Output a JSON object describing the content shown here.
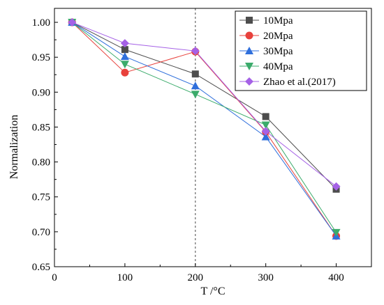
{
  "chart_data": {
    "type": "line",
    "title": "",
    "xlabel": "T /°C",
    "ylabel": "Normalization",
    "xlim": [
      0,
      450
    ],
    "ylim": [
      0.65,
      1.02
    ],
    "xticks": [
      0,
      100,
      200,
      300,
      400
    ],
    "xtick_labels": [
      "0",
      "100",
      "200",
      "300",
      "400"
    ],
    "yticks": [
      0.65,
      0.7,
      0.75,
      0.8,
      0.85,
      0.9,
      0.95,
      1.0
    ],
    "ytick_labels": [
      "0.65",
      "0.70",
      "0.75",
      "0.80",
      "0.85",
      "0.90",
      "0.95",
      "1.00"
    ],
    "grid": false,
    "legend_position": "top-right",
    "reference_line": {
      "x": 200,
      "style": "dashed"
    },
    "x": [
      25,
      100,
      200,
      300,
      400
    ],
    "series": [
      {
        "name": "10Mpa",
        "marker": "square",
        "color": "#4d4d4d",
        "values": [
          1.0,
          0.961,
          0.926,
          0.865,
          0.761
        ]
      },
      {
        "name": "20Mpa",
        "marker": "circle",
        "color": "#e8413c",
        "values": [
          1.0,
          0.928,
          0.958,
          0.843,
          0.694
        ]
      },
      {
        "name": "30Mpa",
        "marker": "triangle-up",
        "color": "#2f6fdc",
        "values": [
          1.0,
          0.951,
          0.909,
          0.836,
          0.694
        ]
      },
      {
        "name": "40Mpa",
        "marker": "triangle-down",
        "color": "#3bab6b",
        "values": [
          1.0,
          0.94,
          0.897,
          0.853,
          0.699
        ]
      },
      {
        "name": "Zhao et al.(2017)",
        "marker": "diamond",
        "color": "#a561e6",
        "values": [
          1.0,
          0.97,
          0.959,
          0.844,
          0.765
        ]
      }
    ]
  }
}
